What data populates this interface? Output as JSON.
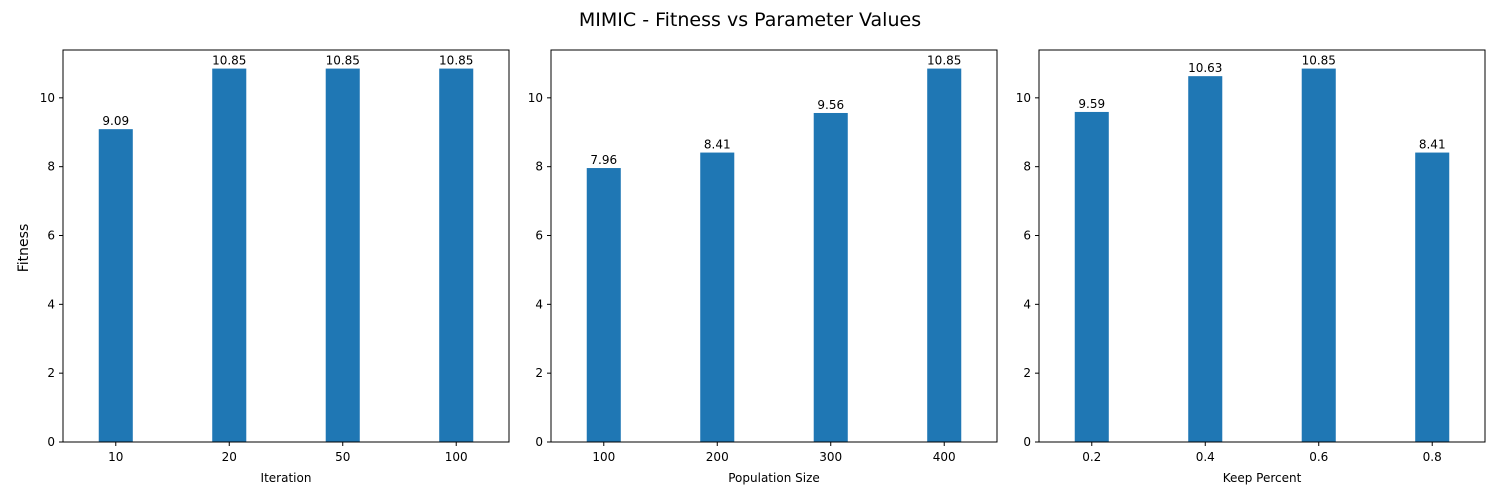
{
  "figure": {
    "title": "MIMIC - Fitness vs Parameter Values",
    "ylabel": "Fitness"
  },
  "colors": {
    "bar": "#1f77b4",
    "axis": "#000000"
  },
  "chart_data": [
    {
      "type": "bar",
      "categories": [
        "10",
        "20",
        "50",
        "100"
      ],
      "values": [
        9.09,
        10.85,
        10.85,
        10.85
      ],
      "data_labels": [
        "9.09",
        "10.85",
        "10.85",
        "10.85"
      ],
      "xlabel": "Iteration",
      "ylabel": "Fitness",
      "ylim": [
        0,
        11.39
      ],
      "yticks": [
        0,
        2,
        4,
        6,
        8,
        10
      ],
      "grid": false
    },
    {
      "type": "bar",
      "categories": [
        "100",
        "200",
        "300",
        "400"
      ],
      "values": [
        7.96,
        8.41,
        9.56,
        10.85
      ],
      "data_labels": [
        "7.96",
        "8.41",
        "9.56",
        "10.85"
      ],
      "xlabel": "Population Size",
      "ylabel": "",
      "ylim": [
        0,
        11.39
      ],
      "yticks": [
        0,
        2,
        4,
        6,
        8,
        10
      ],
      "grid": false
    },
    {
      "type": "bar",
      "categories": [
        "0.2",
        "0.4",
        "0.6",
        "0.8"
      ],
      "values": [
        9.59,
        10.63,
        10.85,
        8.41
      ],
      "data_labels": [
        "9.59",
        "10.63",
        "10.85",
        "8.41"
      ],
      "xlabel": "Keep Percent",
      "ylabel": "",
      "ylim": [
        0,
        11.39
      ],
      "yticks": [
        0,
        2,
        4,
        6,
        8,
        10
      ],
      "grid": false
    }
  ]
}
